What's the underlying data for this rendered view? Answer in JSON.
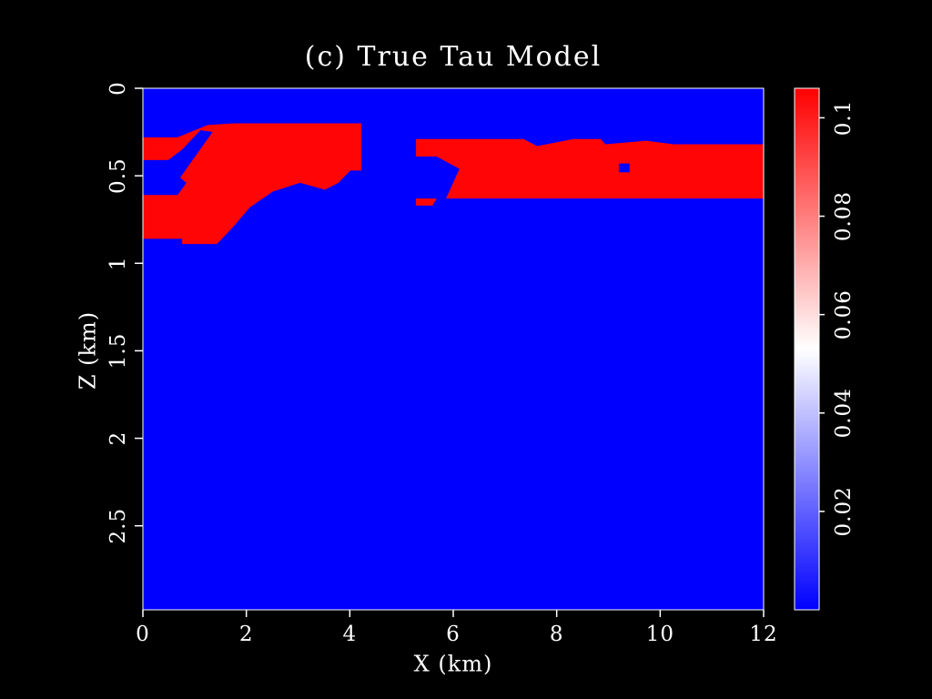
{
  "chart_data": {
    "type": "heatmap",
    "title": "(c) True Tau Model",
    "x_label": "X (km)",
    "y_label": "Z (km)",
    "xlim": [
      0,
      12
    ],
    "xticks": [
      0,
      2,
      4,
      6,
      8,
      10,
      12
    ],
    "ylim": [
      0,
      2.98
    ],
    "yticks": [
      0,
      0.5,
      1,
      1.5,
      2,
      2.5
    ],
    "y_inverted": true,
    "clim": [
      0,
      0.106
    ],
    "cticks": [
      0.02,
      0.04,
      0.06,
      0.08,
      0.1
    ],
    "colormap": [
      "#0000ff",
      "#ffffff",
      "#ff0000"
    ],
    "background_value": 0,
    "regions": [
      {
        "value": 0.105,
        "x": [
          0,
          0.67,
          1.25,
          1.78,
          4.22,
          4.22,
          4.01,
          3.78,
          3.52,
          3.04,
          2.51,
          2.07,
          1.72,
          1.43,
          0.76,
          0.76,
          0
        ],
        "z": [
          0.28,
          0.28,
          0.21,
          0.2,
          0.2,
          0.47,
          0.47,
          0.54,
          0.58,
          0.54,
          0.59,
          0.68,
          0.8,
          0.89,
          0.89,
          0.86,
          0.86
        ]
      },
      {
        "value": 0,
        "x": [
          0,
          0.49,
          0.76,
          1.11,
          1.37,
          0.84,
          0.67,
          0
        ],
        "z": [
          0.41,
          0.41,
          0.35,
          0.24,
          0.25,
          0.54,
          0.61,
          0.61
        ]
      },
      {
        "value": 0.105,
        "x": [
          0.72,
          1.37,
          1.5,
          0.84
        ],
        "z": [
          0.51,
          0.24,
          0.24,
          0.54
        ]
      },
      {
        "value": 0.105,
        "x": [
          5.28,
          7.36,
          7.62,
          8.32,
          8.85,
          8.94,
          9.73,
          10.26,
          12,
          12,
          5.86,
          6.12,
          5.68,
          5.28
        ],
        "z": [
          0.29,
          0.29,
          0.33,
          0.29,
          0.29,
          0.32,
          0.3,
          0.32,
          0.32,
          0.63,
          0.63,
          0.46,
          0.39,
          0.39
        ]
      },
      {
        "value": 0.105,
        "x": [
          5.28,
          5.68,
          5.6,
          5.28
        ],
        "z": [
          0.63,
          0.63,
          0.67,
          0.67
        ]
      },
      {
        "value": 0,
        "x": [
          9.2,
          9.41,
          9.41,
          9.2
        ],
        "z": [
          0.43,
          0.43,
          0.48,
          0.48
        ]
      }
    ]
  }
}
